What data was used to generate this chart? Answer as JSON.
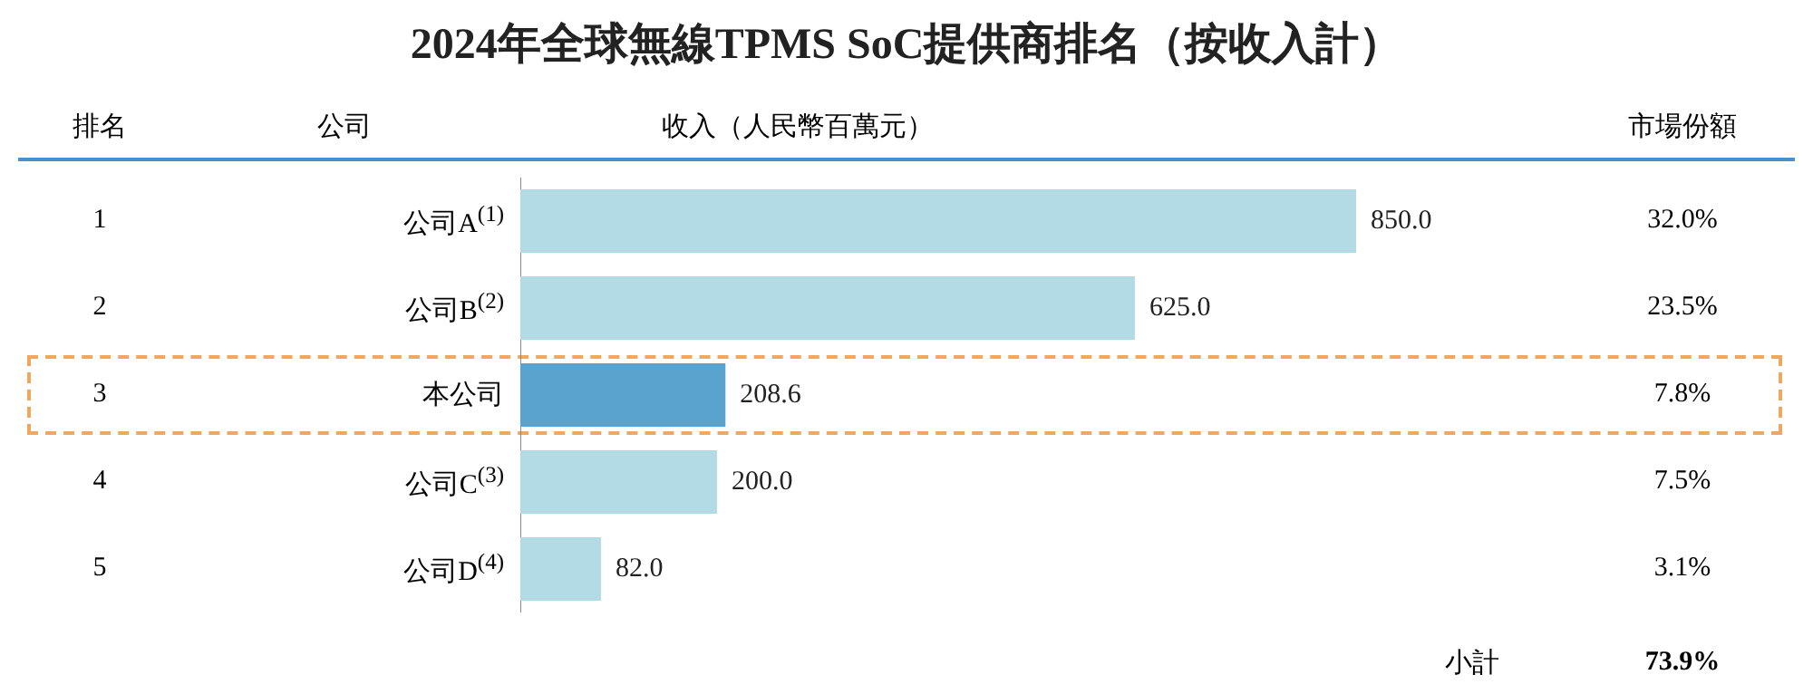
{
  "chart_data": {
    "type": "bar",
    "orientation": "horizontal",
    "title": "2024年全球無線TPMS SoC提供商排名（按收入計）",
    "xlabel": "收入（人民幣百萬元）",
    "ylabel": "公司",
    "categories": [
      "公司A$^{(1)}$",
      "公司B$^{(2)}$",
      "本公司",
      "公司C$^{(3)}$",
      "公司D$^{(4)}$"
    ],
    "values": [
      850.0,
      625.0,
      208.6,
      200.0,
      82.0
    ],
    "value_labels": [
      "850.0",
      "625.0",
      "208.6",
      "200.0",
      "82.0"
    ],
    "colors": [
      "#b2dbe5",
      "#b2dbe5",
      "#5ba3cf",
      "#b2dbe5",
      "#b2dbe5"
    ],
    "annotations": [
      "1",
      "32.0%",
      "2",
      "23.5%",
      "3",
      "7.8%",
      "4",
      "7.5%",
      "5",
      "3.1%",
      "排名",
      "市場份額",
      "小計",
      "73.9%"
    ],
    "grid": false,
    "legend": false
  }
}
